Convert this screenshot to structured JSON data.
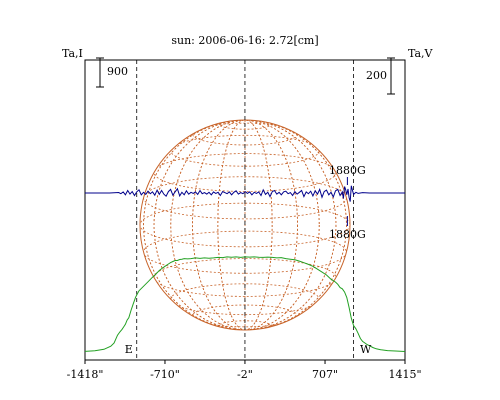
{
  "chart_data": {
    "type": "line",
    "title": "sun: 2006-06-16: 2.72[cm]",
    "left_axis_label": "Ta,I",
    "right_axis_label": "Ta,V",
    "left_scale_bar_value": "900",
    "right_scale_bar_value": "200",
    "x_unit": "arcsec",
    "xlim": [
      -1418,
      1415
    ],
    "x_tick_values": [
      -1418,
      -710,
      -2,
      707,
      1415
    ],
    "x_tick_labels": [
      "-1418\"",
      "-710\"",
      "-2\"",
      "707\"",
      "1415\""
    ],
    "grid": false,
    "limb_markers": [
      {
        "label": "E",
        "x": -960
      },
      {
        "label": "W",
        "x": 960
      }
    ],
    "center_marker_x": -2,
    "annotations": [
      {
        "text": "1880G",
        "x": 905,
        "position": "above"
      },
      {
        "text": "1880G",
        "x": 905,
        "position": "below"
      }
    ],
    "solar_disk_grid": {
      "color": "#c8642a",
      "latitude_step_deg": 15,
      "longitude_step_deg": 15
    },
    "series": [
      {
        "label": "I",
        "color": "#22a022",
        "axis": "left",
        "x": [
          -1418,
          -1330,
          -1250,
          -1190,
          -1160,
          -1130,
          -1110,
          -1090,
          -1075,
          -1060,
          -1045,
          -1030,
          -1010,
          -990,
          -970,
          -940,
          -900,
          -860,
          -820,
          -790,
          -760,
          -730,
          -700,
          -680,
          -660,
          -640,
          -620,
          -600,
          -580,
          -560,
          -540,
          -510,
          -480,
          -440,
          -400,
          -360,
          -320,
          -280,
          -240,
          -200,
          -160,
          -120,
          -80,
          -40,
          0,
          40,
          80,
          120,
          160,
          200,
          240,
          280,
          320,
          360,
          400,
          440,
          480,
          520,
          560,
          600,
          640,
          680,
          720,
          760,
          800,
          820,
          840,
          860,
          880,
          900,
          920,
          940,
          960,
          980,
          1000,
          1020,
          1040,
          1060,
          1080,
          1100,
          1130,
          1160,
          1200,
          1260,
          1330,
          1415
        ],
        "y": [
          20,
          40,
          85,
          180,
          280,
          520,
          620,
          700,
          780,
          860,
          990,
          1060,
          1300,
          1500,
          1700,
          1900,
          2040,
          2180,
          2320,
          2420,
          2530,
          2610,
          2680,
          2730,
          2775,
          2810,
          2840,
          2840,
          2870,
          2880,
          2900,
          2890,
          2900,
          2920,
          2905,
          2920,
          2910,
          2920,
          2935,
          2930,
          2950,
          2940,
          2950,
          2935,
          2950,
          2945,
          2950,
          2940,
          2935,
          2945,
          2935,
          2920,
          2930,
          2900,
          2880,
          2860,
          2820,
          2770,
          2720,
          2660,
          2570,
          2480,
          2390,
          2260,
          2170,
          2100,
          2000,
          1960,
          1860,
          1690,
          1380,
          1050,
          820,
          720,
          580,
          420,
          330,
          280,
          230,
          195,
          140,
          100,
          70,
          45,
          30,
          15
        ]
      },
      {
        "label": "V",
        "color": "#00008b",
        "axis": "right",
        "x": [
          -1418,
          -1200,
          -1120,
          -1100,
          -1080,
          -1060,
          -1040,
          -1020,
          -1000,
          -980,
          -960,
          -940,
          -920,
          -900,
          -880,
          -860,
          -840,
          -820,
          -800,
          -780,
          -760,
          -740,
          -720,
          -700,
          -680,
          -660,
          -640,
          -620,
          -600,
          -580,
          -560,
          -540,
          -520,
          -500,
          -480,
          -460,
          -440,
          -420,
          -400,
          -380,
          -360,
          -340,
          -320,
          -300,
          -280,
          -260,
          -240,
          -220,
          -200,
          -180,
          -160,
          -140,
          -120,
          -100,
          -80,
          -60,
          -40,
          -20,
          0,
          20,
          40,
          60,
          80,
          100,
          120,
          140,
          160,
          180,
          200,
          220,
          240,
          260,
          280,
          300,
          320,
          340,
          360,
          380,
          400,
          420,
          440,
          460,
          480,
          500,
          520,
          540,
          560,
          580,
          600,
          620,
          640,
          660,
          680,
          700,
          720,
          740,
          760,
          780,
          800,
          820,
          840,
          860,
          870,
          880,
          890,
          900,
          910,
          920,
          930,
          940,
          950,
          960,
          980,
          1000,
          1040,
          1100,
          1200,
          1415
        ],
        "y": [
          0,
          0,
          3,
          -4,
          6,
          -10,
          14,
          -6,
          8,
          -14,
          6,
          18,
          -10,
          4,
          -8,
          10,
          -4,
          6,
          -12,
          16,
          -8,
          14,
          -6,
          -18,
          8,
          20,
          -12,
          6,
          24,
          -16,
          4,
          -10,
          12,
          -6,
          4,
          -2,
          6,
          -8,
          14,
          -4,
          2,
          -6,
          4,
          -10,
          6,
          -2,
          4,
          -14,
          8,
          2,
          -4,
          6,
          -10,
          4,
          12,
          -6,
          2,
          -4,
          8,
          -2,
          6,
          -10,
          4,
          -2,
          6,
          -14,
          18,
          -8,
          4,
          -20,
          8,
          14,
          -6,
          4,
          -10,
          6,
          10,
          -4,
          2,
          -14,
          8,
          -6,
          4,
          14,
          -20,
          6,
          -4,
          10,
          -16,
          12,
          -6,
          20,
          -24,
          8,
          16,
          -10,
          4,
          -22,
          12,
          20,
          -14,
          6,
          -30,
          36,
          18,
          -10,
          22,
          -26,
          -48,
          40,
          14,
          -8,
          4,
          -2,
          2,
          0,
          0,
          0
        ]
      }
    ]
  }
}
